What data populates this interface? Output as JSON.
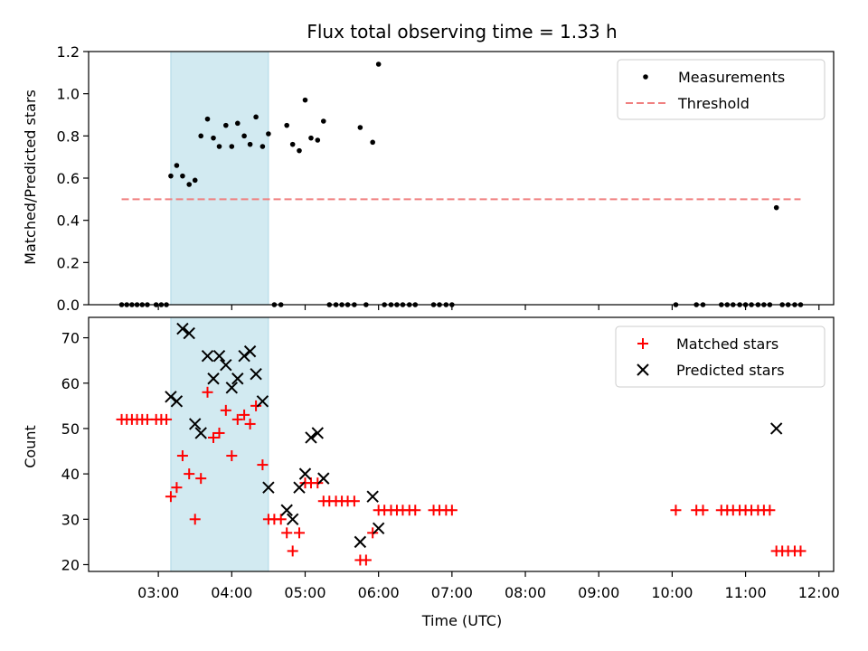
{
  "chart_data": [
    {
      "type": "scatter",
      "title": "Flux total observing time = 1.33 h",
      "xlabel": "",
      "ylabel": "Matched/Predicted stars",
      "ylim": [
        0,
        1.2
      ],
      "yticks": [
        0.0,
        0.2,
        0.4,
        0.6,
        0.8,
        1.0,
        1.2
      ],
      "ytick_labels": [
        "0.0",
        "0.2",
        "0.4",
        "0.6",
        "0.8",
        "1.0",
        "1.2"
      ],
      "xlim_hours": [
        2.05,
        12.2
      ],
      "highlight_span_hours": [
        3.17,
        4.5
      ],
      "highlight_color": "#add8e6",
      "legend_position": "top-right",
      "series": [
        {
          "name": "Measurements",
          "color": "#000000",
          "marker": "dot",
          "points": [
            [
              2.5,
              0
            ],
            [
              2.57,
              0
            ],
            [
              2.64,
              0
            ],
            [
              2.71,
              0
            ],
            [
              2.78,
              0
            ],
            [
              2.85,
              0
            ],
            [
              2.97,
              0
            ],
            [
              3.04,
              0
            ],
            [
              3.11,
              0
            ],
            [
              3.17,
              0.61
            ],
            [
              3.25,
              0.66
            ],
            [
              3.33,
              0.61
            ],
            [
              3.42,
              0.57
            ],
            [
              3.5,
              0.59
            ],
            [
              3.58,
              0.8
            ],
            [
              3.67,
              0.88
            ],
            [
              3.75,
              0.79
            ],
            [
              3.83,
              0.75
            ],
            [
              3.92,
              0.85
            ],
            [
              4.0,
              0.75
            ],
            [
              4.08,
              0.86
            ],
            [
              4.17,
              0.8
            ],
            [
              4.25,
              0.76
            ],
            [
              4.33,
              0.89
            ],
            [
              4.42,
              0.75
            ],
            [
              4.5,
              0.81
            ],
            [
              4.58,
              0
            ],
            [
              4.67,
              0
            ],
            [
              4.75,
              0.85
            ],
            [
              4.83,
              0.76
            ],
            [
              4.92,
              0.73
            ],
            [
              5.0,
              0.97
            ],
            [
              5.08,
              0.79
            ],
            [
              5.17,
              0.78
            ],
            [
              5.25,
              0.87
            ],
            [
              5.33,
              0
            ],
            [
              5.42,
              0
            ],
            [
              5.5,
              0
            ],
            [
              5.58,
              0
            ],
            [
              5.67,
              0
            ],
            [
              5.75,
              0.84
            ],
            [
              5.83,
              0
            ],
            [
              5.92,
              0.77
            ],
            [
              6.0,
              1.14
            ],
            [
              6.08,
              0
            ],
            [
              6.17,
              0
            ],
            [
              6.25,
              0
            ],
            [
              6.33,
              0
            ],
            [
              6.42,
              0
            ],
            [
              6.5,
              0
            ],
            [
              6.75,
              0
            ],
            [
              6.83,
              0
            ],
            [
              6.92,
              0
            ],
            [
              7.0,
              0
            ],
            [
              10.05,
              0
            ],
            [
              10.33,
              0
            ],
            [
              10.42,
              0
            ],
            [
              10.67,
              0
            ],
            [
              10.75,
              0
            ],
            [
              10.83,
              0
            ],
            [
              10.92,
              0
            ],
            [
              11.0,
              0
            ],
            [
              11.08,
              0
            ],
            [
              11.17,
              0
            ],
            [
              11.25,
              0
            ],
            [
              11.33,
              0
            ],
            [
              11.42,
              0.46
            ],
            [
              11.5,
              0
            ],
            [
              11.58,
              0
            ],
            [
              11.67,
              0
            ],
            [
              11.75,
              0
            ]
          ]
        },
        {
          "name": "Threshold",
          "color": "#f08080",
          "style": "dashed",
          "points": [
            [
              2.5,
              0.5
            ],
            [
              11.75,
              0.5
            ]
          ]
        }
      ]
    },
    {
      "type": "scatter",
      "title": "",
      "xlabel": "Time (UTC)",
      "ylabel": "Count",
      "ylim": [
        18.5,
        74.5
      ],
      "yticks": [
        20,
        30,
        40,
        50,
        60,
        70
      ],
      "ytick_labels": [
        "20",
        "30",
        "40",
        "50",
        "60",
        "70"
      ],
      "xlim_hours": [
        2.05,
        12.2
      ],
      "xticks_hours": [
        3,
        4,
        5,
        6,
        7,
        8,
        9,
        10,
        11,
        12
      ],
      "xtick_labels": [
        "03:00",
        "04:00",
        "05:00",
        "06:00",
        "07:00",
        "08:00",
        "09:00",
        "10:00",
        "11:00",
        "12:00"
      ],
      "highlight_span_hours": [
        3.17,
        4.5
      ],
      "highlight_color": "#add8e6",
      "legend_position": "top-right",
      "series": [
        {
          "name": "Matched stars",
          "color": "#ff0000",
          "marker": "plus",
          "points": [
            [
              2.5,
              52
            ],
            [
              2.57,
              52
            ],
            [
              2.64,
              52
            ],
            [
              2.71,
              52
            ],
            [
              2.78,
              52
            ],
            [
              2.85,
              52
            ],
            [
              2.97,
              52
            ],
            [
              3.04,
              52
            ],
            [
              3.11,
              52
            ],
            [
              3.17,
              35
            ],
            [
              3.25,
              37
            ],
            [
              3.33,
              44
            ],
            [
              3.42,
              40
            ],
            [
              3.5,
              30
            ],
            [
              3.58,
              39
            ],
            [
              3.67,
              58
            ],
            [
              3.75,
              48
            ],
            [
              3.83,
              49
            ],
            [
              3.92,
              54
            ],
            [
              4.0,
              44
            ],
            [
              4.08,
              52
            ],
            [
              4.17,
              53
            ],
            [
              4.25,
              51
            ],
            [
              4.33,
              55
            ],
            [
              4.42,
              42
            ],
            [
              4.5,
              30
            ],
            [
              4.58,
              30
            ],
            [
              4.67,
              30
            ],
            [
              4.75,
              27
            ],
            [
              4.83,
              23
            ],
            [
              4.92,
              27
            ],
            [
              5.0,
              38
            ],
            [
              5.08,
              38
            ],
            [
              5.17,
              38
            ],
            [
              5.25,
              34
            ],
            [
              5.33,
              34
            ],
            [
              5.42,
              34
            ],
            [
              5.5,
              34
            ],
            [
              5.58,
              34
            ],
            [
              5.67,
              34
            ],
            [
              5.75,
              21
            ],
            [
              5.83,
              21
            ],
            [
              5.92,
              27
            ],
            [
              6.0,
              32
            ],
            [
              6.08,
              32
            ],
            [
              6.17,
              32
            ],
            [
              6.25,
              32
            ],
            [
              6.33,
              32
            ],
            [
              6.42,
              32
            ],
            [
              6.5,
              32
            ],
            [
              6.75,
              32
            ],
            [
              6.83,
              32
            ],
            [
              6.92,
              32
            ],
            [
              7.0,
              32
            ],
            [
              10.05,
              32
            ],
            [
              10.33,
              32
            ],
            [
              10.42,
              32
            ],
            [
              10.67,
              32
            ],
            [
              10.75,
              32
            ],
            [
              10.83,
              32
            ],
            [
              10.92,
              32
            ],
            [
              11.0,
              32
            ],
            [
              11.08,
              32
            ],
            [
              11.17,
              32
            ],
            [
              11.25,
              32
            ],
            [
              11.33,
              32
            ],
            [
              11.42,
              23
            ],
            [
              11.5,
              23
            ],
            [
              11.58,
              23
            ],
            [
              11.67,
              23
            ],
            [
              11.75,
              23
            ]
          ]
        },
        {
          "name": "Predicted stars",
          "color": "#000000",
          "marker": "x",
          "points": [
            [
              3.17,
              57
            ],
            [
              3.25,
              56
            ],
            [
              3.33,
              72
            ],
            [
              3.42,
              71
            ],
            [
              3.5,
              51
            ],
            [
              3.58,
              49
            ],
            [
              3.67,
              66
            ],
            [
              3.75,
              61
            ],
            [
              3.83,
              66
            ],
            [
              3.92,
              64
            ],
            [
              4.0,
              59
            ],
            [
              4.08,
              61
            ],
            [
              4.17,
              66
            ],
            [
              4.25,
              67
            ],
            [
              4.33,
              62
            ],
            [
              4.42,
              56
            ],
            [
              4.5,
              37
            ],
            [
              4.75,
              32
            ],
            [
              4.83,
              30
            ],
            [
              4.92,
              37
            ],
            [
              5.0,
              40
            ],
            [
              5.08,
              48
            ],
            [
              5.17,
              49
            ],
            [
              5.25,
              39
            ],
            [
              5.75,
              25
            ],
            [
              5.92,
              35
            ],
            [
              6.0,
              28
            ],
            [
              11.42,
              50
            ]
          ]
        }
      ]
    }
  ]
}
